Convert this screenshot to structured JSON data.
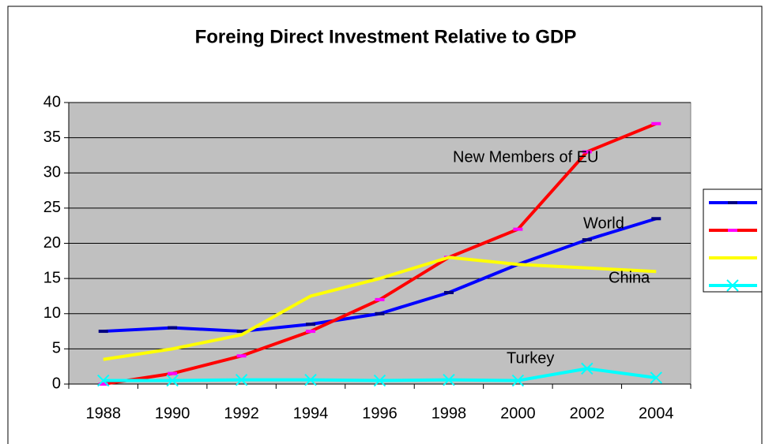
{
  "chart_data": {
    "type": "line",
    "title": "Foreing Direct Investment Relative to GDP",
    "categories": [
      "1988",
      "1990",
      "1992",
      "1994",
      "1996",
      "1998",
      "2000",
      "2002",
      "2004"
    ],
    "series": [
      {
        "name": "World",
        "color": "#0000ff",
        "marker": "dash",
        "marker_color": "#000080",
        "values": [
          7.5,
          8,
          7.5,
          8.5,
          10,
          13,
          17,
          20.5,
          23.5
        ]
      },
      {
        "name": "New Members of EU",
        "color": "#ff0000",
        "marker": "dash",
        "marker_color": "#ff00ff",
        "values": [
          0,
          1.5,
          4,
          7.5,
          12,
          18,
          22,
          33,
          37
        ]
      },
      {
        "name": "China",
        "color": "#ffff00",
        "marker": "none",
        "marker_color": "#ffff00",
        "values": [
          3.5,
          5,
          7,
          12.5,
          15,
          18,
          17,
          16.5,
          16
        ]
      },
      {
        "name": "Turkey",
        "color": "#00ffff",
        "marker": "x",
        "marker_color": "#00ffff",
        "values": [
          0.5,
          0.5,
          0.6,
          0.6,
          0.5,
          0.6,
          0.5,
          2.2,
          0.9
        ]
      }
    ],
    "ylim": [
      0,
      40
    ],
    "yticks": [
      0,
      5,
      10,
      15,
      20,
      25,
      30,
      35,
      40
    ],
    "grid": true,
    "legend": "right"
  }
}
